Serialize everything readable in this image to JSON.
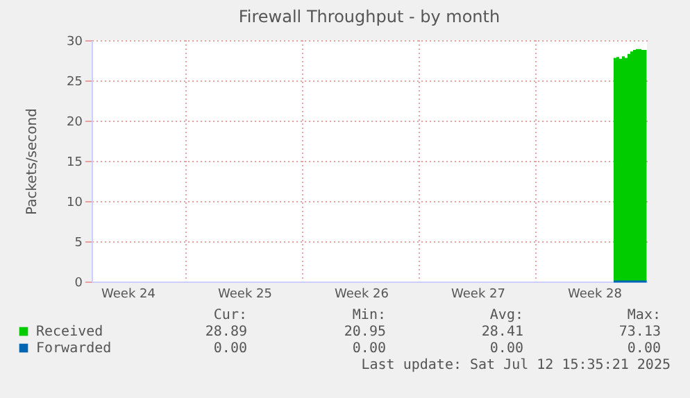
{
  "chart_data": {
    "type": "area",
    "title": "Firewall Throughput - by month",
    "ylabel": "Packets/second",
    "x": [
      "2025-07-10T16:00",
      "2025-07-10T20:00",
      "2025-07-11T00:00",
      "2025-07-11T04:00",
      "2025-07-11T08:00",
      "2025-07-11T12:00",
      "2025-07-11T16:00",
      "2025-07-11T20:00",
      "2025-07-12T00:00",
      "2025-07-12T04:00",
      "2025-07-12T08:00",
      "2025-07-12T15:30"
    ],
    "series": [
      {
        "name": "Received",
        "color": "#00cc00",
        "values": [
          27.8,
          27.9,
          27.7,
          28.0,
          27.8,
          28.3,
          28.6,
          28.8,
          28.9,
          28.9,
          28.8,
          28.8
        ]
      },
      {
        "name": "Forwarded",
        "color": "#0066b3",
        "type": "line",
        "values": [
          0,
          0,
          0,
          0,
          0,
          0,
          0,
          0,
          0,
          0,
          0,
          0
        ]
      }
    ],
    "xlim": [
      "2025-06-09T08:00",
      "2025-07-12T16:00"
    ],
    "xticks": [
      {
        "value": "2025-06-11T12:00",
        "label": "Week 24"
      },
      {
        "value": "2025-06-15T00:00",
        "label": null
      },
      {
        "value": "2025-06-18T12:00",
        "label": "Week 25"
      },
      {
        "value": "2025-06-22T00:00",
        "label": null
      },
      {
        "value": "2025-06-25T12:00",
        "label": "Week 26"
      },
      {
        "value": "2025-06-29T00:00",
        "label": null
      },
      {
        "value": "2025-07-02T12:00",
        "label": "Week 27"
      },
      {
        "value": "2025-07-06T00:00",
        "label": null
      },
      {
        "value": "2025-07-09T12:00",
        "label": "Week 28"
      }
    ],
    "ylim": [
      0,
      30
    ],
    "yticks": [
      0,
      5,
      10,
      15,
      20,
      25,
      30
    ],
    "grid": true,
    "legend": "bottom left",
    "annotations": [
      "Cur:",
      "Min:",
      "Avg:",
      "Max:",
      "28.89",
      "20.95",
      "28.41",
      "73.13",
      "0.00",
      "0.00",
      "0.00",
      "0.00",
      "Last update: Sat Jul 12 15:35:21 2025"
    ]
  }
}
